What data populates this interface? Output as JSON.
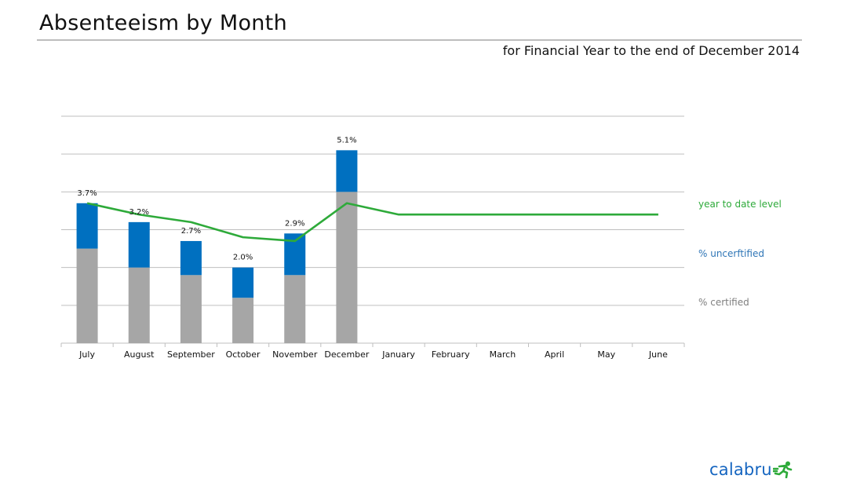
{
  "header": {
    "title": "Absenteeism by Month",
    "subtitle": "for Financial Year to the end of December 2014"
  },
  "colors": {
    "certified": "#a6a6a6",
    "uncertified": "#0070c0",
    "ytd": "#2eaa3a",
    "grid": "#bfbfbf"
  },
  "chart_data": {
    "type": "bar",
    "stacked": true,
    "categories": [
      "July",
      "August",
      "September",
      "October",
      "November",
      "December",
      "January",
      "February",
      "March",
      "April",
      "May",
      "June"
    ],
    "ylim": [
      0,
      6
    ],
    "grid": true,
    "series": [
      {
        "name": "% certified",
        "kind": "bar",
        "values": [
          2.5,
          2.0,
          1.8,
          1.2,
          1.8,
          4.0,
          null,
          null,
          null,
          null,
          null,
          null
        ]
      },
      {
        "name": "% uncerftified",
        "kind": "bar",
        "values": [
          1.2,
          1.2,
          0.9,
          0.8,
          1.1,
          1.1,
          null,
          null,
          null,
          null,
          null,
          null
        ]
      },
      {
        "name": "year to date level",
        "kind": "line",
        "values": [
          3.7,
          3.4,
          3.2,
          2.8,
          2.7,
          3.7,
          3.4,
          3.4,
          3.4,
          3.4,
          3.4,
          3.4
        ]
      }
    ],
    "data_labels": [
      "3.7%",
      "3.2%",
      "2.7%",
      "2.0%",
      "2.9%",
      "5.1%",
      "",
      "",
      "",
      "",
      "",
      ""
    ],
    "legend": [
      {
        "label": "year to date level",
        "color": "#2eaa3a"
      },
      {
        "label": "% uncerftified",
        "color": "#2e75b6"
      },
      {
        "label": "% certified",
        "color": "#7f7f7f"
      }
    ],
    "legend_placement": "right"
  },
  "logo": {
    "text": "calabru"
  }
}
